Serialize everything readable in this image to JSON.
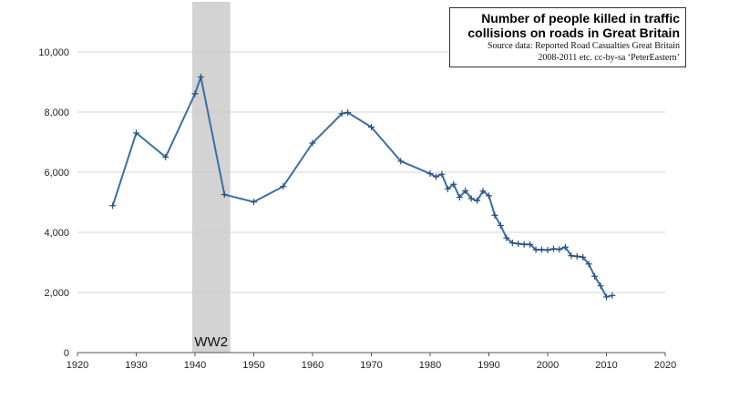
{
  "chart_data": {
    "type": "line",
    "title_lines": [
      "Number of people killed in traffic",
      "collisions on roads in Great Britain"
    ],
    "source_lines": [
      "Source data: Reported Road Casualties Great Britain",
      "2008-2011 etc.  cc-by-sa ‘PeterEastern’"
    ],
    "annotation": {
      "label": "WW2",
      "x_range": [
        1939.5,
        1946
      ]
    },
    "xlim": [
      1920,
      2020
    ],
    "ylim": [
      0,
      10000
    ],
    "x_ticks": [
      1920,
      1930,
      1940,
      1950,
      1960,
      1970,
      1980,
      1990,
      2000,
      2010,
      2020
    ],
    "y_ticks": [
      0,
      2000,
      4000,
      6000,
      8000,
      10000
    ],
    "x_tick_labels": [
      "1920",
      "1930",
      "1940",
      "1950",
      "1960",
      "1970",
      "1980",
      "1990",
      "2000",
      "2010",
      "2020"
    ],
    "y_tick_labels": [
      "0",
      "2,000",
      "4,000",
      "6,000",
      "8,000",
      "10,000"
    ],
    "grid": true,
    "series_color": "#3a6ea5",
    "band_color": "#d3d3d3",
    "x": [
      1926,
      1930,
      1935,
      1940,
      1941,
      1945,
      1950,
      1955,
      1960,
      1965,
      1966,
      1970,
      1975,
      1980,
      1981,
      1982,
      1983,
      1984,
      1985,
      1986,
      1987,
      1988,
      1989,
      1990,
      1991,
      1992,
      1993,
      1994,
      1995,
      1996,
      1997,
      1998,
      1999,
      2000,
      2001,
      2002,
      2003,
      2004,
      2005,
      2006,
      2007,
      2008,
      2009,
      2010,
      2011
    ],
    "y": [
      4886,
      7305,
      6502,
      8609,
      9169,
      5256,
      5012,
      5526,
      6970,
      7952,
      7985,
      7499,
      6366,
      5953,
      5846,
      5934,
      5445,
      5599,
      5165,
      5382,
      5125,
      5052,
      5373,
      5217,
      4568,
      4229,
      3814,
      3650,
      3621,
      3598,
      3599,
      3421,
      3423,
      3409,
      3450,
      3431,
      3508,
      3221,
      3201,
      3172,
      2946,
      2538,
      2222,
      1850,
      1901
    ]
  }
}
